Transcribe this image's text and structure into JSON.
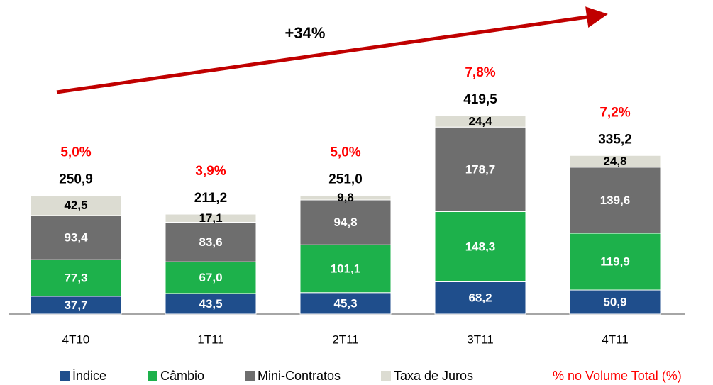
{
  "chart_data": {
    "type": "stacked_bar",
    "annotation": "+34%",
    "categories": [
      "4T10",
      "1T11",
      "2T11",
      "3T11",
      "4T11"
    ],
    "series": [
      {
        "name": "Índice",
        "color": "#1f4e8c",
        "values": [
          37.7,
          43.5,
          45.3,
          68.2,
          50.9
        ],
        "value_labels": [
          "37,7",
          "43,5",
          "45,3",
          "68,2",
          "50,9"
        ]
      },
      {
        "name": "Câmbio",
        "color": "#1db14b",
        "values": [
          77.3,
          67.0,
          101.1,
          148.3,
          119.9
        ],
        "value_labels": [
          "77,3",
          "67,0",
          "101,1",
          "148,3",
          "119,9"
        ]
      },
      {
        "name": "Mini-Contratos",
        "color": "#6e6e6e",
        "values": [
          93.4,
          83.6,
          94.8,
          178.7,
          139.6
        ],
        "value_labels": [
          "93,4",
          "83,6",
          "94,8",
          "178,7",
          "139,6"
        ]
      },
      {
        "name": "Taxa de Juros",
        "color": "#dcdcd2",
        "values": [
          42.5,
          17.1,
          9.8,
          24.4,
          24.8
        ],
        "value_labels": [
          "42,5",
          "17,1",
          "9,8",
          "24,4",
          "24,8"
        ]
      }
    ],
    "totals": [
      250.9,
      211.2,
      251.0,
      419.5,
      335.2
    ],
    "total_labels": [
      "250,9",
      "211,2",
      "251,0",
      "419,5",
      "335,2"
    ],
    "share_name": "% no Volume Total (%)",
    "share_color": "#ff0000",
    "shares": [
      5.0,
      3.9,
      5.0,
      7.8,
      7.2
    ],
    "share_labels": [
      "5,0%",
      "3,9%",
      "5,0%",
      "7,8%",
      "7,2%"
    ]
  }
}
